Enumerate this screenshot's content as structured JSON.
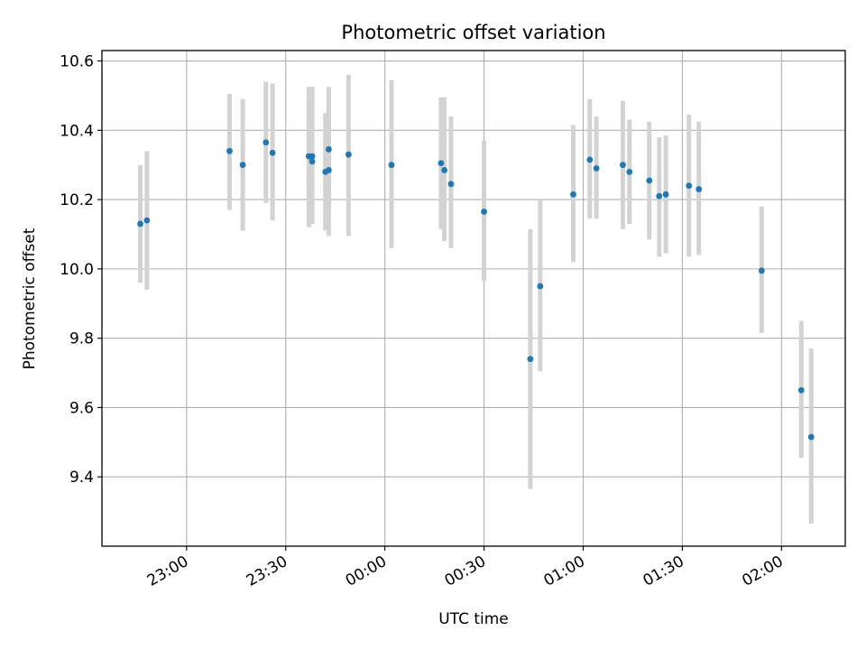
{
  "chart_data": {
    "type": "scatter",
    "title": "Photometric offset variation",
    "xlabel": "UTC time",
    "ylabel": "Photometric offset",
    "x_range": [
      "22:34:23",
      "02:19:18"
    ],
    "ylim": [
      9.2,
      10.63
    ],
    "x_ticks": [
      "23:00",
      "23:30",
      "00:00",
      "00:30",
      "01:00",
      "01:30",
      "02:00"
    ],
    "y_ticks": [
      "9.4",
      "9.6",
      "9.8",
      "10.0",
      "10.2",
      "10.4",
      "10.6"
    ],
    "grid": true,
    "marker_color": "#1f77b4",
    "errorbar_color": "#d3d3d3",
    "series": [
      {
        "x": [
          "22:46",
          "22:48",
          "23:13",
          "23:17",
          "23:24",
          "23:26",
          "23:37",
          "23:37",
          "23:38",
          "23:38",
          "23:42",
          "23:43",
          "23:43",
          "23:49",
          "00:02",
          "00:17",
          "00:18",
          "00:20",
          "00:30",
          "00:44",
          "00:47",
          "00:57",
          "01:02",
          "01:04",
          "01:12",
          "01:14",
          "01:20",
          "01:23",
          "01:25",
          "01:32",
          "01:35",
          "01:54",
          "02:06",
          "02:09"
        ],
        "y": [
          10.13,
          10.14,
          10.34,
          10.3,
          10.365,
          10.335,
          10.325,
          10.325,
          10.31,
          10.325,
          10.28,
          10.285,
          10.345,
          10.33,
          10.3,
          10.305,
          10.285,
          10.245,
          10.165,
          9.74,
          9.95,
          10.215,
          10.315,
          10.29,
          10.3,
          10.28,
          10.255,
          10.21,
          10.215,
          10.24,
          10.23,
          9.995,
          9.65,
          9.515
        ],
        "err_low": [
          9.96,
          9.94,
          10.17,
          10.11,
          10.19,
          10.14,
          10.165,
          10.12,
          10.13,
          10.13,
          10.11,
          10.095,
          10.17,
          10.095,
          10.06,
          10.115,
          10.08,
          10.06,
          9.965,
          9.365,
          9.705,
          10.02,
          10.145,
          10.145,
          10.115,
          10.13,
          10.085,
          10.035,
          10.045,
          10.035,
          10.04,
          9.815,
          9.455,
          9.265
        ],
        "err_high": [
          10.3,
          10.34,
          10.505,
          10.49,
          10.54,
          10.535,
          10.485,
          10.525,
          10.525,
          10.525,
          10.45,
          10.47,
          10.525,
          10.56,
          10.545,
          10.495,
          10.495,
          10.44,
          10.37,
          10.115,
          10.2,
          10.415,
          10.49,
          10.44,
          10.485,
          10.43,
          10.425,
          10.38,
          10.385,
          10.445,
          10.425,
          10.18,
          9.85,
          9.77
        ]
      }
    ]
  }
}
